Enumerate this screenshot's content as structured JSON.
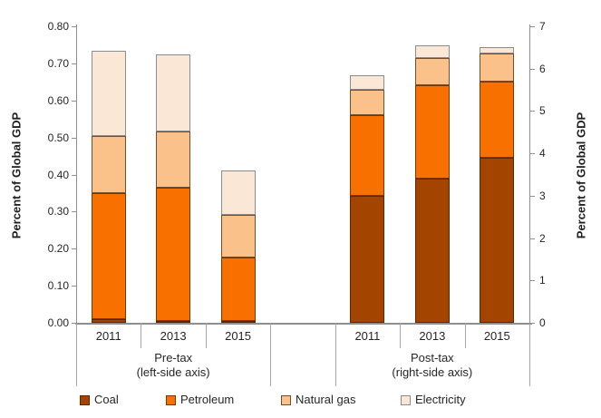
{
  "chart": {
    "left_axis": {
      "title": "Percent of Global GDP",
      "tick_labels": [
        "0.00",
        "0.10",
        "0.20",
        "0.30",
        "0.40",
        "0.50",
        "0.60",
        "0.70",
        "0.80"
      ],
      "min": 0,
      "max": 0.8
    },
    "right_axis": {
      "title": "Percent of Global GDP",
      "tick_labels": [
        "0",
        "1",
        "2",
        "3",
        "4",
        "5",
        "6",
        "7"
      ],
      "min": 0,
      "max": 7
    },
    "legend": [
      {
        "label": "Coal",
        "fill": "#A34400",
        "border": "#5C2600"
      },
      {
        "label": "Petroleum",
        "fill": "#F87100",
        "border": "#7A3800"
      },
      {
        "label": "Natural gas",
        "fill": "#FBC18A",
        "border": "#6E5030"
      },
      {
        "label": "Electricity",
        "fill": "#FBE7D5",
        "border": "#8C8C8C"
      }
    ]
  },
  "chart_data": {
    "type": "bar",
    "stacked": true,
    "grid": false,
    "legend_position": "bottom",
    "ylabel_left": "Percent of Global GDP",
    "ylabel_right": "Percent of Global GDP",
    "ylim_left": [
      0,
      0.8
    ],
    "ylim_right": [
      0,
      7
    ],
    "series_names": [
      "Coal",
      "Petroleum",
      "Natural gas",
      "Electricity"
    ],
    "groups": [
      {
        "label": "Pre-tax",
        "sublabel": "(left-side axis)",
        "axis": "left",
        "categories": [
          "2011",
          "2013",
          "2015"
        ],
        "series": [
          {
            "name": "Coal",
            "values": [
              0.01,
              0.005,
              0.005
            ]
          },
          {
            "name": "Petroleum",
            "values": [
              0.34,
              0.36,
              0.17
            ]
          },
          {
            "name": "Natural gas",
            "values": [
              0.155,
              0.15,
              0.115
            ]
          },
          {
            "name": "Electricity",
            "values": [
              0.23,
              0.21,
              0.12
            ]
          }
        ]
      },
      {
        "label": "Post-tax",
        "sublabel": "(right-side axis)",
        "axis": "right",
        "categories": [
          "2011",
          "2013",
          "2015"
        ],
        "series": [
          {
            "name": "Coal",
            "values": [
              3.0,
              3.4,
              3.9
            ]
          },
          {
            "name": "Petroleum",
            "values": [
              1.9,
              2.2,
              1.8
            ]
          },
          {
            "name": "Natural gas",
            "values": [
              0.6,
              0.65,
              0.65
            ]
          },
          {
            "name": "Electricity",
            "values": [
              0.35,
              0.3,
              0.15
            ]
          }
        ]
      }
    ]
  }
}
